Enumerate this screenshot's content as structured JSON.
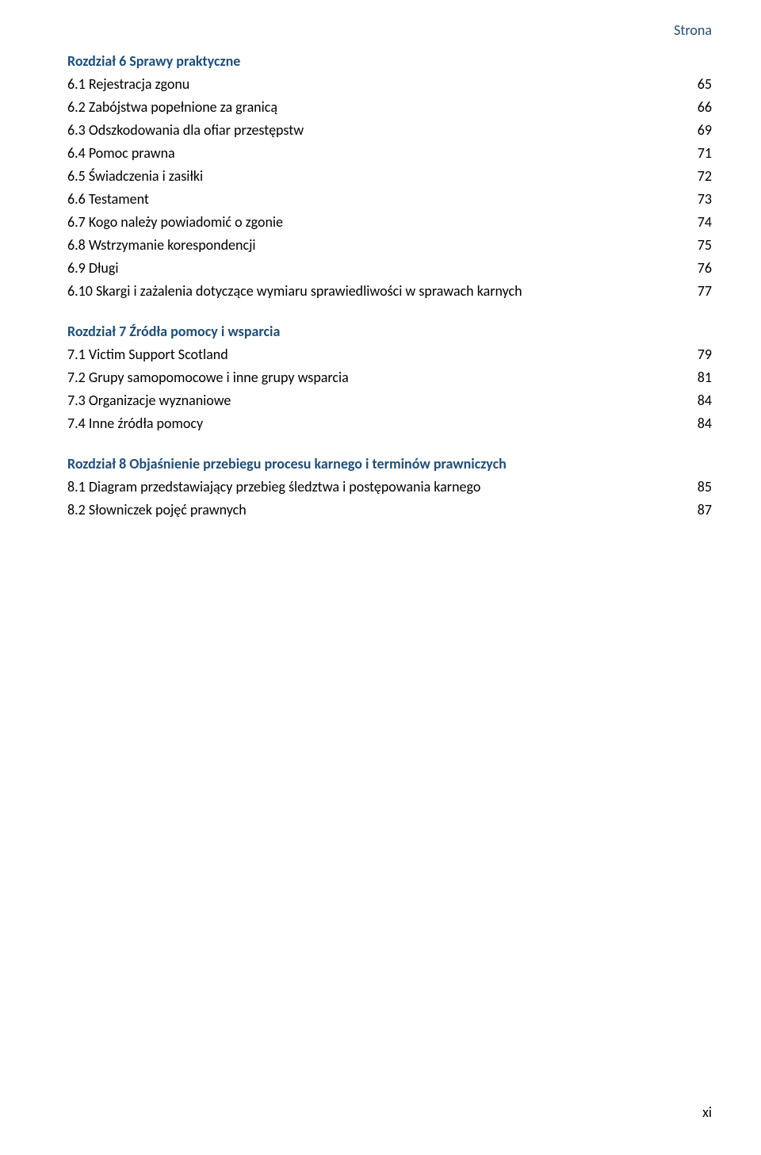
{
  "header": "Strona",
  "chapters": [
    {
      "title": "Rozdział 6 Sprawy praktyczne",
      "items": [
        {
          "label": "6.1 Rejestracja zgonu",
          "page": "65"
        },
        {
          "label": "6.2 Zabójstwa popełnione za granicą",
          "page": "66"
        },
        {
          "label": "6.3 Odszkodowania dla ofiar przestępstw",
          "page": "69"
        },
        {
          "label": "6.4 Pomoc prawna",
          "page": "71"
        },
        {
          "label": "6.5 Świadczenia i zasiłki",
          "page": "72"
        },
        {
          "label": "6.6 Testament",
          "page": "73"
        },
        {
          "label": "6.7 Kogo należy powiadomić o zgonie",
          "page": "74"
        },
        {
          "label": "6.8 Wstrzymanie korespondencji",
          "page": "75"
        },
        {
          "label": "6.9 Długi",
          "page": "76"
        },
        {
          "label": "6.10 Skargi i zażalenia dotyczące wymiaru sprawiedliwości w sprawach karnych",
          "page": "77"
        }
      ]
    },
    {
      "title": "Rozdział 7 Źródła pomocy i wsparcia",
      "items": [
        {
          "label": "7.1 Victim Support Scotland",
          "page": "79"
        },
        {
          "label": "7.2 Grupy samopomocowe i inne grupy wsparcia",
          "page": "81"
        },
        {
          "label": "7.3 Organizacje wyznaniowe",
          "page": "84"
        },
        {
          "label": "7.4 Inne źródła pomocy",
          "page": "84"
        }
      ]
    },
    {
      "title": "Rozdział 8 Objaśnienie przebiegu procesu karnego i terminów prawniczych",
      "items": [
        {
          "label": "8.1 Diagram przedstawiający przebieg śledztwa i postępowania karnego",
          "page": "85"
        },
        {
          "label": "8.2 Słowniczek pojęć prawnych",
          "page": "87"
        }
      ]
    }
  ],
  "footer": "xi",
  "colors": {
    "heading": "#1f4e79",
    "text": "#000000",
    "background": "#ffffff"
  }
}
